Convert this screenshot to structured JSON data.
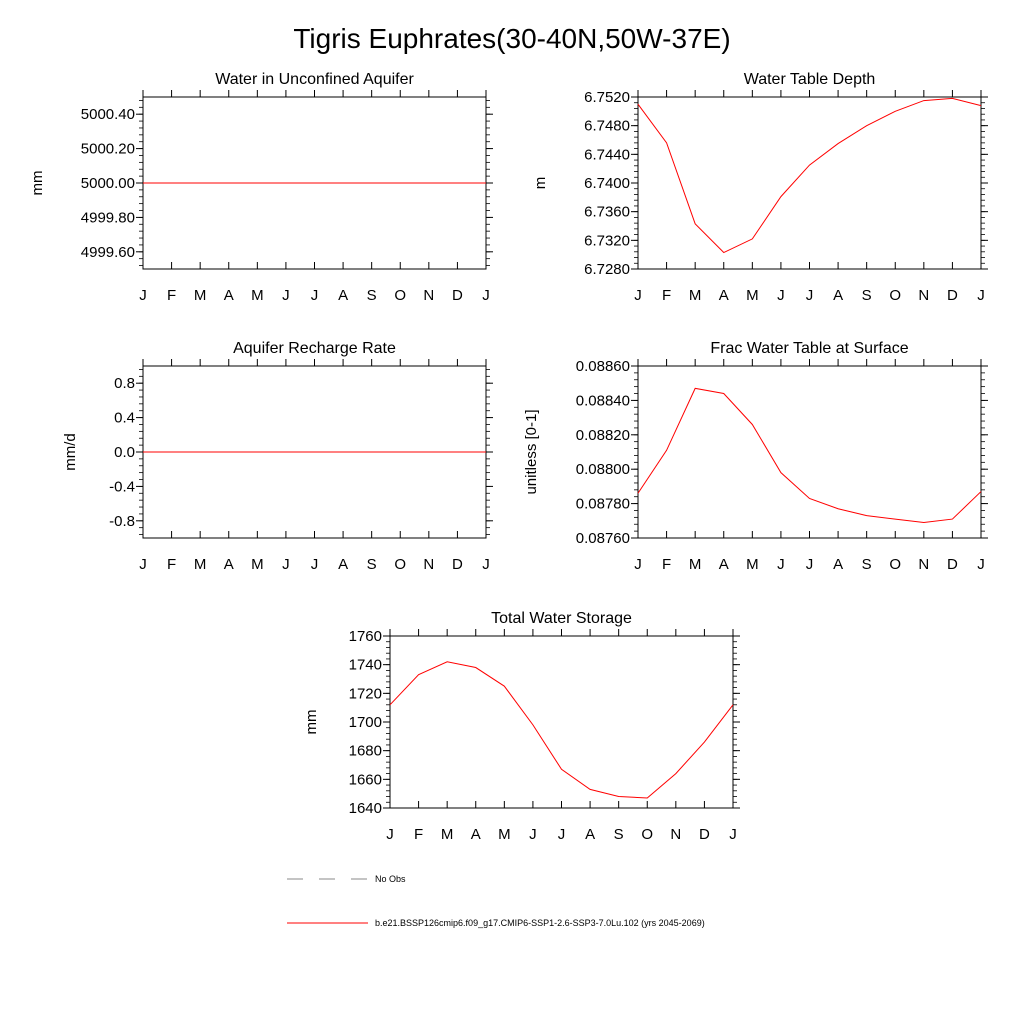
{
  "figure": {
    "title": "Tigris Euphrates(30-40N,50W-37E)"
  },
  "months": [
    "J",
    "F",
    "M",
    "A",
    "M",
    "J",
    "J",
    "A",
    "S",
    "O",
    "N",
    "D",
    "J"
  ],
  "legend": {
    "items": [
      {
        "label": "No Obs",
        "style": "dashed",
        "color": "#888888"
      },
      {
        "label": "b.e21.BSSP126cmip6.f09_g17.CMIP6-SSP1-2.6-SSP3-7.0Lu.102 (yrs 2045-2069)",
        "style": "solid",
        "color": "#ff0000"
      }
    ]
  },
  "chart_data": [
    {
      "type": "line",
      "title": "Water in Unconfined Aquifer",
      "ylabel": "mm",
      "ylim": [
        4999.5,
        5000.5
      ],
      "yticks": [
        "5000.40",
        "5000.20",
        "5000.00",
        "4999.80",
        "4999.60"
      ],
      "ytick_values": [
        5000.4,
        5000.2,
        5000.0,
        4999.8,
        4999.6
      ],
      "series": [
        {
          "color": "#ff0000",
          "values": [
            5000,
            5000,
            5000,
            5000,
            5000,
            5000,
            5000,
            5000,
            5000,
            5000,
            5000,
            5000,
            5000
          ]
        }
      ]
    },
    {
      "type": "line",
      "title": "Water Table Depth",
      "ylabel": "m",
      "ylim": [
        6.728,
        6.752
      ],
      "yticks": [
        "6.7520",
        "6.7480",
        "6.7440",
        "6.7400",
        "6.7360",
        "6.7320",
        "6.7280"
      ],
      "ytick_values": [
        6.752,
        6.748,
        6.744,
        6.74,
        6.736,
        6.732,
        6.728
      ],
      "series": [
        {
          "color": "#ff0000",
          "values": [
            6.751,
            6.7456,
            6.7343,
            6.7303,
            6.7322,
            6.7381,
            6.7425,
            6.7455,
            6.748,
            6.75,
            6.7515,
            6.7518,
            6.7508
          ]
        }
      ]
    },
    {
      "type": "line",
      "title": "Aquifer Recharge Rate",
      "ylabel": "mm/d",
      "ylim": [
        -1.0,
        1.0
      ],
      "yticks": [
        "0.8",
        "0.4",
        "0.0",
        "-0.4",
        "-0.8"
      ],
      "ytick_values": [
        0.8,
        0.4,
        0.0,
        -0.4,
        -0.8
      ],
      "series": [
        {
          "color": "#ff0000",
          "values": [
            0,
            0,
            0,
            0,
            0,
            0,
            0,
            0,
            0,
            0,
            0,
            0,
            0
          ]
        }
      ]
    },
    {
      "type": "line",
      "title": "Frac Water Table at Surface",
      "ylabel": "unitless [0-1]",
      "ylim": [
        0.0876,
        0.0886
      ],
      "yticks": [
        "0.08860",
        "0.08840",
        "0.08820",
        "0.08800",
        "0.08780",
        "0.08760"
      ],
      "ytick_values": [
        0.0886,
        0.0884,
        0.0882,
        0.088,
        0.0878,
        0.0876
      ],
      "series": [
        {
          "color": "#ff0000",
          "values": [
            0.08786,
            0.08811,
            0.08847,
            0.08844,
            0.08826,
            0.08798,
            0.08783,
            0.08777,
            0.08773,
            0.08771,
            0.08769,
            0.08771,
            0.08787
          ]
        }
      ]
    },
    {
      "type": "line",
      "title": "Total Water Storage",
      "ylabel": "mm",
      "ylim": [
        1640,
        1760
      ],
      "yticks": [
        "1760",
        "1740",
        "1720",
        "1700",
        "1680",
        "1660",
        "1640"
      ],
      "ytick_values": [
        1760,
        1740,
        1720,
        1700,
        1680,
        1660,
        1640
      ],
      "series": [
        {
          "color": "#ff0000",
          "values": [
            1712,
            1733,
            1742,
            1738,
            1725,
            1698,
            1667,
            1653,
            1648,
            1647,
            1664,
            1686,
            1712
          ]
        }
      ]
    }
  ]
}
